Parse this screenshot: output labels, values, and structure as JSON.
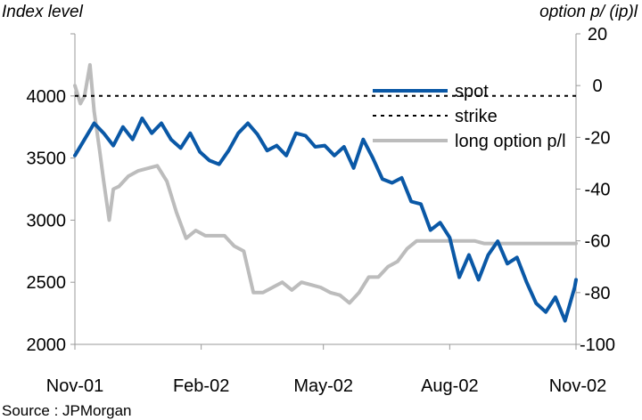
{
  "chart_data": {
    "type": "line",
    "y_left_label": "Index level",
    "y_right_label": "option p/ (ip)l",
    "y_left_ticks": [
      "2000",
      "2500",
      "3000",
      "3500",
      "4000"
    ],
    "y_right_ticks": [
      "-100",
      "-80",
      "-60",
      "-40",
      "-20",
      "0",
      "20"
    ],
    "x_ticks": [
      "Nov-01",
      "Feb-02",
      "May-02",
      "Aug-02",
      "Nov-02"
    ],
    "y_left_lim": [
      2000,
      4500
    ],
    "y_right_lim": [
      -100,
      20
    ],
    "grid": false,
    "legend_position": "top-right",
    "series": [
      {
        "name": "spot",
        "axis": "left",
        "color": "#0a58a6",
        "x": [
          "2001-11-01",
          "2001-11-08",
          "2001-11-15",
          "2001-11-22",
          "2001-11-29",
          "2001-12-06",
          "2001-12-13",
          "2001-12-20",
          "2001-12-27",
          "2002-01-03",
          "2002-01-10",
          "2002-01-17",
          "2002-01-24",
          "2002-01-31",
          "2002-02-07",
          "2002-02-14",
          "2002-02-21",
          "2002-02-28",
          "2002-03-07",
          "2002-03-14",
          "2002-03-21",
          "2002-03-28",
          "2002-04-04",
          "2002-04-11",
          "2002-04-18",
          "2002-04-25",
          "2002-05-02",
          "2002-05-09",
          "2002-05-16",
          "2002-05-23",
          "2002-05-30",
          "2002-06-06",
          "2002-06-13",
          "2002-06-20",
          "2002-06-27",
          "2002-07-04",
          "2002-07-11",
          "2002-07-18",
          "2002-07-25",
          "2002-08-01",
          "2002-08-08",
          "2002-08-15",
          "2002-08-22",
          "2002-08-29",
          "2002-09-05",
          "2002-09-12",
          "2002-09-19",
          "2002-09-26",
          "2002-10-03",
          "2002-10-10",
          "2002-10-17",
          "2002-10-24",
          "2002-10-31",
          "2002-11-01"
        ],
        "values": [
          3520,
          3650,
          3780,
          3700,
          3600,
          3750,
          3650,
          3820,
          3700,
          3780,
          3650,
          3580,
          3700,
          3550,
          3480,
          3450,
          3560,
          3700,
          3780,
          3690,
          3560,
          3600,
          3520,
          3700,
          3680,
          3590,
          3600,
          3520,
          3590,
          3420,
          3650,
          3500,
          3330,
          3300,
          3340,
          3150,
          3130,
          2920,
          2980,
          2860,
          2540,
          2720,
          2520,
          2720,
          2830,
          2650,
          2700,
          2500,
          2330,
          2260,
          2380,
          2190,
          2460,
          2520
        ]
      },
      {
        "name": "strike",
        "axis": "left",
        "color": "#000000",
        "dashed": true,
        "x": [
          "2001-11-01",
          "2002-11-01"
        ],
        "values": [
          4000,
          4000
        ]
      },
      {
        "name": "long option p/l",
        "axis": "right",
        "color": "#bcbcbc",
        "x": [
          "2001-11-01",
          "2001-11-05",
          "2001-11-08",
          "2001-11-12",
          "2001-11-15",
          "2001-11-19",
          "2001-11-22",
          "2001-11-26",
          "2001-11-29",
          "2001-12-03",
          "2001-12-10",
          "2001-12-17",
          "2001-12-24",
          "2001-12-31",
          "2002-01-07",
          "2002-01-14",
          "2002-01-21",
          "2002-01-28",
          "2002-02-04",
          "2002-02-11",
          "2002-02-18",
          "2002-02-25",
          "2002-03-04",
          "2002-03-11",
          "2002-03-18",
          "2002-03-25",
          "2002-04-01",
          "2002-04-08",
          "2002-04-15",
          "2002-04-22",
          "2002-04-29",
          "2002-05-06",
          "2002-05-13",
          "2002-05-20",
          "2002-05-27",
          "2002-06-03",
          "2002-06-10",
          "2002-06-17",
          "2002-06-24",
          "2002-07-01",
          "2002-07-08",
          "2002-07-15",
          "2002-07-22",
          "2002-07-29",
          "2002-08-05",
          "2002-08-12",
          "2002-08-19",
          "2002-08-26",
          "2002-09-02",
          "2002-09-16",
          "2002-10-01",
          "2002-10-15",
          "2002-11-01"
        ],
        "values": [
          0,
          -7,
          -4,
          8,
          -10,
          -25,
          -37,
          -52,
          -40,
          -39,
          -35,
          -33,
          -32,
          -31,
          -37,
          -49,
          -59,
          -56,
          -58,
          -58,
          -58,
          -62,
          -64,
          -80,
          -80,
          -78,
          -76,
          -79,
          -76,
          -77,
          -78,
          -80,
          -81,
          -84,
          -80,
          -74,
          -74,
          -70,
          -68,
          -63,
          -60,
          -60,
          -60,
          -60,
          -60,
          -60,
          -60,
          -61,
          -61,
          -61,
          -61,
          -61,
          -61
        ]
      }
    ]
  },
  "source": "Source : JPMorgan"
}
